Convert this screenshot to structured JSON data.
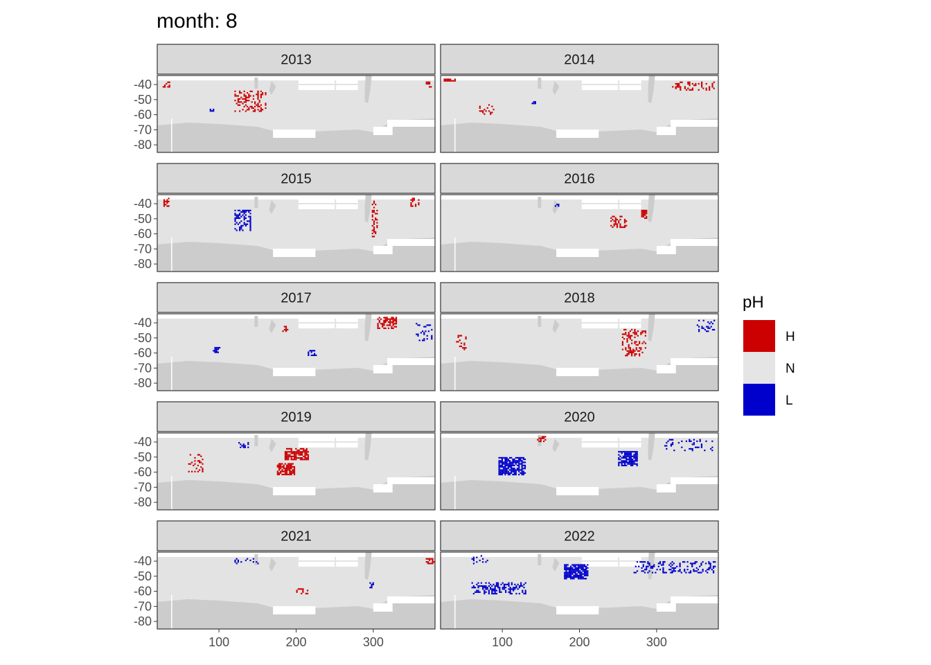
{
  "chart_data": {
    "type": "heatmap",
    "title": "month: 8",
    "xlabel": "",
    "ylabel": "",
    "x_ticks": [
      100,
      200,
      300
    ],
    "y_ticks": [
      -40,
      -50,
      -60,
      -70,
      -80
    ],
    "xlim": [
      20,
      380
    ],
    "ylim": [
      -85,
      -30
    ],
    "legend": {
      "title": "pH",
      "placement": "right",
      "entries": [
        {
          "label": "H",
          "color": "#cc0000"
        },
        {
          "label": "N",
          "color": "#e5e5e5"
        },
        {
          "label": "L",
          "color": "#0000cc"
        }
      ]
    },
    "panel_background": "#e3e3e3",
    "land_color": "#cccccc",
    "strip_color": "#d9d9d9",
    "grid": false,
    "panels": [
      {
        "year": "2013",
        "blobs": [
          {
            "cat": "H",
            "lon": [
              120,
              160
            ],
            "lat": [
              -58,
              -44
            ],
            "density": 0.35
          },
          {
            "cat": "H",
            "lon": [
              25,
              35
            ],
            "lat": [
              -42,
              -38
            ],
            "density": 0.4
          },
          {
            "cat": "H",
            "lon": [
              368,
              375
            ],
            "lat": [
              -42,
              -38
            ],
            "density": 0.5
          },
          {
            "cat": "L",
            "lon": [
              88,
              92
            ],
            "lat": [
              -58,
              -56
            ],
            "density": 0.8
          }
        ]
      },
      {
        "year": "2014",
        "blobs": [
          {
            "cat": "H",
            "lon": [
              22,
              38
            ],
            "lat": [
              -38,
              -36
            ],
            "density": 0.7
          },
          {
            "cat": "H",
            "lon": [
              320,
              375
            ],
            "lat": [
              -44,
              -38
            ],
            "density": 0.3
          },
          {
            "cat": "H",
            "lon": [
              70,
              90
            ],
            "lat": [
              -60,
              -52
            ],
            "density": 0.25
          },
          {
            "cat": "L",
            "lon": [
              138,
              142
            ],
            "lat": [
              -53,
              -51
            ],
            "density": 0.8
          }
        ]
      },
      {
        "year": "2015",
        "blobs": [
          {
            "cat": "L",
            "lon": [
              120,
              140
            ],
            "lat": [
              -58,
              -44
            ],
            "density": 0.45
          },
          {
            "cat": "H",
            "lon": [
              298,
              305
            ],
            "lat": [
              -62,
              -38
            ],
            "density": 0.35
          },
          {
            "cat": "H",
            "lon": [
              348,
              358
            ],
            "lat": [
              -42,
              -36
            ],
            "density": 0.4
          },
          {
            "cat": "H",
            "lon": [
              28,
              34
            ],
            "lat": [
              -42,
              -36
            ],
            "density": 0.5
          }
        ]
      },
      {
        "year": "2016",
        "blobs": [
          {
            "cat": "H",
            "lon": [
              240,
              260
            ],
            "lat": [
              -56,
              -48
            ],
            "density": 0.5
          },
          {
            "cat": "H",
            "lon": [
              280,
              286
            ],
            "lat": [
              -50,
              -44
            ],
            "density": 0.9
          },
          {
            "cat": "L",
            "lon": [
              168,
              172
            ],
            "lat": [
              -42,
              -40
            ],
            "density": 0.8
          }
        ]
      },
      {
        "year": "2017",
        "blobs": [
          {
            "cat": "H",
            "lon": [
              305,
              330
            ],
            "lat": [
              -44,
              -36
            ],
            "density": 0.55
          },
          {
            "cat": "L",
            "lon": [
              355,
              375
            ],
            "lat": [
              -52,
              -40
            ],
            "density": 0.25
          },
          {
            "cat": "L",
            "lon": [
              92,
              100
            ],
            "lat": [
              -60,
              -56
            ],
            "density": 0.6
          },
          {
            "cat": "L",
            "lon": [
              215,
              225
            ],
            "lat": [
              -62,
              -58
            ],
            "density": 0.5
          },
          {
            "cat": "H",
            "lon": [
              182,
              188
            ],
            "lat": [
              -46,
              -42
            ],
            "density": 0.5
          }
        ]
      },
      {
        "year": "2018",
        "blobs": [
          {
            "cat": "H",
            "lon": [
              255,
              285
            ],
            "lat": [
              -62,
              -44
            ],
            "density": 0.3
          },
          {
            "cat": "L",
            "lon": [
              352,
              375
            ],
            "lat": [
              -46,
              -38
            ],
            "density": 0.3
          },
          {
            "cat": "H",
            "lon": [
              40,
              52
            ],
            "lat": [
              -58,
              -48
            ],
            "density": 0.3
          }
        ]
      },
      {
        "year": "2019",
        "blobs": [
          {
            "cat": "H",
            "lon": [
              185,
              215
            ],
            "lat": [
              -52,
              -44
            ],
            "density": 0.75
          },
          {
            "cat": "H",
            "lon": [
              175,
              198
            ],
            "lat": [
              -62,
              -54
            ],
            "density": 0.75
          },
          {
            "cat": "L",
            "lon": [
              125,
              138
            ],
            "lat": [
              -44,
              -40
            ],
            "density": 0.3
          },
          {
            "cat": "H",
            "lon": [
              60,
              80
            ],
            "lat": [
              -60,
              -48
            ],
            "density": 0.2
          }
        ]
      },
      {
        "year": "2020",
        "blobs": [
          {
            "cat": "L",
            "lon": [
              95,
              130
            ],
            "lat": [
              -62,
              -50
            ],
            "density": 0.75
          },
          {
            "cat": "L",
            "lon": [
              250,
              275
            ],
            "lat": [
              -56,
              -46
            ],
            "density": 0.75
          },
          {
            "cat": "L",
            "lon": [
              310,
              375
            ],
            "lat": [
              -46,
              -38
            ],
            "density": 0.15
          },
          {
            "cat": "H",
            "lon": [
              145,
              155
            ],
            "lat": [
              -40,
              -36
            ],
            "density": 0.4
          }
        ]
      },
      {
        "year": "2021",
        "blobs": [
          {
            "cat": "H",
            "lon": [
              368,
              378
            ],
            "lat": [
              -42,
              -38
            ],
            "density": 0.6
          },
          {
            "cat": "H",
            "lon": [
              200,
              215
            ],
            "lat": [
              -62,
              -58
            ],
            "density": 0.4
          },
          {
            "cat": "L",
            "lon": [
              295,
              300
            ],
            "lat": [
              -58,
              -54
            ],
            "density": 0.5
          },
          {
            "cat": "L",
            "lon": [
              120,
              150
            ],
            "lat": [
              -42,
              -38
            ],
            "density": 0.2
          }
        ]
      },
      {
        "year": "2022",
        "blobs": [
          {
            "cat": "L",
            "lon": [
              180,
              210
            ],
            "lat": [
              -52,
              -42
            ],
            "density": 0.8
          },
          {
            "cat": "L",
            "lon": [
              60,
              130
            ],
            "lat": [
              -62,
              -54
            ],
            "density": 0.45
          },
          {
            "cat": "L",
            "lon": [
              60,
              80
            ],
            "lat": [
              -42,
              -36
            ],
            "density": 0.3
          },
          {
            "cat": "L",
            "lon": [
              270,
              375
            ],
            "lat": [
              -48,
              -40
            ],
            "density": 0.3
          }
        ]
      }
    ]
  }
}
